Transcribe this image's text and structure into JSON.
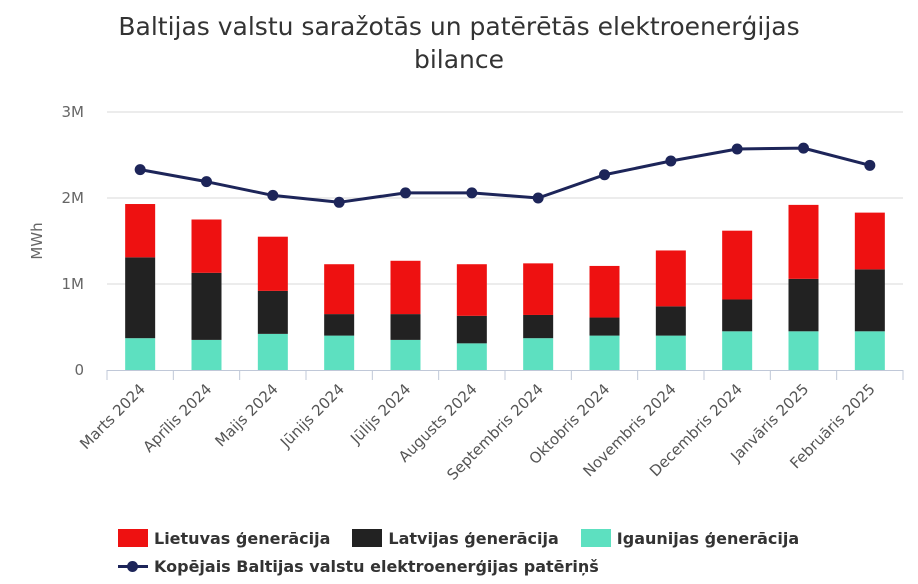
{
  "chart_data": {
    "type": "bar",
    "title_line1": "Baltijas valstu saražotās un patērētās elektroenerģijas",
    "title_line2": "bilance",
    "ylabel": "MWh",
    "ylim": [
      0,
      3000000
    ],
    "yticks": [
      {
        "value": 0,
        "label": "0"
      },
      {
        "value": 1000000,
        "label": "1M"
      },
      {
        "value": 2000000,
        "label": "2M"
      },
      {
        "value": 3000000,
        "label": "3M"
      }
    ],
    "categories": [
      "Marts 2024",
      "Aprīlis 2024",
      "Maijs 2024",
      "Jūnijs 2024",
      "Jūlijs 2024",
      "Augusts 2024",
      "Septembris 2024",
      "Oktobris 2024",
      "Novembris 2024",
      "Decembris 2024",
      "Janvāris 2025",
      "Februāris 2025"
    ],
    "stack_series": [
      {
        "name": "Igaunijas ģenerācija",
        "color": "#5de0c0",
        "values": [
          370000,
          350000,
          420000,
          400000,
          350000,
          310000,
          370000,
          400000,
          400000,
          450000,
          450000,
          450000
        ]
      },
      {
        "name": "Latvijas ģenerācija",
        "color": "#222222",
        "values": [
          940000,
          780000,
          500000,
          250000,
          300000,
          320000,
          270000,
          210000,
          340000,
          370000,
          610000,
          720000
        ]
      },
      {
        "name": "Lietuvas ģenerācija",
        "color": "#ee1111",
        "values": [
          620000,
          620000,
          630000,
          580000,
          620000,
          600000,
          600000,
          600000,
          650000,
          800000,
          860000,
          660000
        ]
      }
    ],
    "line_series": {
      "name": "Kopējais Baltijas valstu elektroenerģijas patēriņš",
      "color": "#1d2559",
      "values": [
        2330000,
        2190000,
        2030000,
        1950000,
        2060000,
        2060000,
        2000000,
        2270000,
        2430000,
        2570000,
        2580000,
        2380000
      ]
    },
    "grid": true,
    "legend_position": "bottom"
  }
}
